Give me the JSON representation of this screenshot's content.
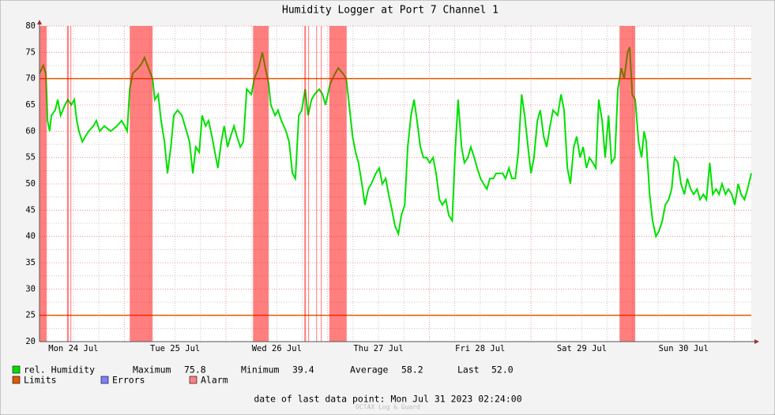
{
  "chart_data": {
    "type": "line",
    "title": "Humidity Logger at Port 7 Channel 1",
    "xlim": [
      4,
      172
    ],
    "xticks": [
      {
        "value": 12,
        "label": "Mon 24 Jul"
      },
      {
        "value": 36,
        "label": "Tue 25 Jul"
      },
      {
        "value": 60,
        "label": "Wed 26 Jul"
      },
      {
        "value": 84,
        "label": "Thu 27 Jul"
      },
      {
        "value": 108,
        "label": "Fri 28 Jul"
      },
      {
        "value": 132,
        "label": "Sat 29 Jul"
      },
      {
        "value": 156,
        "label": "Sun 30 Jul"
      }
    ],
    "x_major_grid": [
      24,
      48,
      72,
      96,
      120,
      144,
      168
    ],
    "x_minor_grid": [
      6,
      12,
      18,
      30,
      36,
      42,
      54,
      60,
      66,
      78,
      84,
      90,
      102,
      108,
      114,
      126,
      132,
      138,
      150,
      156,
      162
    ],
    "ylim": [
      20,
      80
    ],
    "yticks": [
      20,
      25,
      30,
      35,
      40,
      45,
      50,
      55,
      60,
      65,
      70,
      75,
      80
    ],
    "y_minor_grid": [
      22.5,
      27.5,
      32.5,
      37.5,
      42.5,
      47.5,
      52.5,
      57.5,
      62.5,
      67.5,
      72.5,
      77.5
    ],
    "grid": true,
    "series": [
      {
        "name": "rel. Humidity",
        "color": "#00e000",
        "x": [
          4.0,
          4.9,
          5.5,
          5.9,
          6.4,
          6.8,
          7.7,
          8.3,
          9.0,
          10.0,
          10.7,
          11.5,
          12.2,
          12.8,
          13.3,
          14.1,
          14.8,
          15.6,
          16.7,
          17.4,
          18.2,
          19.3,
          20.8,
          22.3,
          23.4,
          24.1,
          24.7,
          25.3,
          26.0,
          27.3,
          28.2,
          28.8,
          29.7,
          30.7,
          31.2,
          32.0,
          32.7,
          33.5,
          34.2,
          35.0,
          35.7,
          36.6,
          37.6,
          38.7,
          39.4,
          40.2,
          40.9,
          41.7,
          42.4,
          43.2,
          43.9,
          44.7,
          45.4,
          46.1,
          46.9,
          47.6,
          48.4,
          49.1,
          49.9,
          50.6,
          51.4,
          52.1,
          52.9,
          54.0,
          54.7,
          55.7,
          56.6,
          57.3,
          58.1,
          58.6,
          59.6,
          60.3,
          61.1,
          62.2,
          62.9,
          63.7,
          64.4,
          65.2,
          65.9,
          66.7,
          67.4,
          68.2,
          68.9,
          70.0,
          70.8,
          71.5,
          72.6,
          73.8,
          74.5,
          75.6,
          76.4,
          77.1,
          77.9,
          78.6,
          79.3,
          80.1,
          80.8,
          81.6,
          82.3,
          83.4,
          84.2,
          84.9,
          85.7,
          86.4,
          87.2,
          87.9,
          88.7,
          89.4,
          90.2,
          90.9,
          91.7,
          92.4,
          93.1,
          93.9,
          94.6,
          95.4,
          96.1,
          96.9,
          97.6,
          98.4,
          99.1,
          99.9,
          100.6,
          101.4,
          102.1,
          102.8,
          103.6,
          104.3,
          105.1,
          105.8,
          106.6,
          107.3,
          108.1,
          108.8,
          109.6,
          110.3,
          111.1,
          111.8,
          113.3,
          114.0,
          114.8,
          115.5,
          116.3,
          117.0,
          117.8,
          118.5,
          119.3,
          120.0,
          120.7,
          121.5,
          122.2,
          123.0,
          123.7,
          124.5,
          125.2,
          126.3,
          127.1,
          127.8,
          128.6,
          129.3,
          130.1,
          130.8,
          131.6,
          132.3,
          133.1,
          133.8,
          134.6,
          135.3,
          136.0,
          136.8,
          137.5,
          138.3,
          139.0,
          139.8,
          140.5,
          141.3,
          142.0,
          142.8,
          143.3,
          143.9,
          144.6,
          145.4,
          146.1,
          146.7,
          147.2,
          148.0,
          148.7,
          149.5,
          150.2,
          151.0,
          151.7,
          152.5,
          153.2,
          153.9,
          154.7,
          155.4,
          156.2,
          156.9,
          157.7,
          158.4,
          159.2,
          159.9,
          160.7,
          161.4,
          162.2,
          162.9,
          163.7,
          164.4,
          165.1,
          165.9,
          166.6,
          167.4,
          168.1,
          168.9,
          169.6,
          170.4,
          171.1,
          172.0
        ],
        "values": [
          71,
          72.5,
          71,
          62,
          60,
          63,
          64,
          66,
          63,
          65,
          66,
          65,
          66,
          62,
          60,
          58,
          59,
          60,
          61,
          62,
          60,
          61,
          60,
          61,
          62,
          61,
          60,
          68,
          71,
          72,
          73,
          74,
          72,
          70,
          66,
          67,
          62,
          58,
          52,
          57,
          63,
          64,
          63,
          60,
          58,
          52,
          57,
          56,
          63,
          61,
          62,
          59,
          56,
          53,
          58,
          61,
          57,
          59,
          61,
          59,
          57,
          58,
          68,
          67,
          70,
          72,
          75,
          72,
          69,
          65,
          63,
          64,
          62,
          60,
          58,
          52,
          51,
          63,
          64,
          68,
          63,
          66,
          67,
          68,
          67,
          65,
          69,
          71,
          72,
          71,
          70,
          65,
          59,
          56,
          54,
          50,
          46,
          49,
          50,
          52,
          53,
          50,
          51,
          48,
          45,
          42,
          40.5,
          44,
          46,
          57,
          63,
          66,
          62,
          57,
          55,
          55,
          54,
          55,
          52,
          47,
          46,
          47,
          44,
          43,
          56,
          66,
          57,
          54,
          55,
          57,
          55,
          53,
          51,
          50,
          49,
          51,
          51,
          52,
          52,
          51,
          53,
          51,
          51,
          56,
          67,
          63,
          57,
          52,
          55,
          62,
          64,
          59,
          57,
          61,
          64,
          63,
          67,
          64,
          53,
          50,
          57,
          59,
          55,
          57,
          53,
          55,
          54,
          53,
          66,
          62,
          55,
          63,
          54,
          55,
          68,
          72,
          70,
          75,
          76,
          67,
          66,
          58,
          55,
          60,
          58,
          48,
          43,
          40,
          41,
          43,
          46,
          47,
          49,
          55,
          54,
          50,
          48,
          51,
          49,
          48,
          49,
          47,
          48,
          47,
          54,
          48,
          49,
          48,
          50,
          48,
          49,
          48,
          46,
          50,
          48,
          47,
          49,
          52
        ]
      },
      {
        "name": "Limits",
        "color": "#e05a00",
        "values": [
          70,
          25
        ]
      },
      {
        "name": "Errors",
        "color": "#7f7fff"
      },
      {
        "name": "Alarm",
        "color": "#ff7f7f",
        "spans": [
          [
            4.0,
            5.7
          ],
          [
            10.5,
            10.9
          ],
          [
            11.3,
            11.5
          ],
          [
            25.3,
            30.7
          ],
          [
            54.4,
            58.1
          ],
          [
            66.5,
            66.9
          ],
          [
            67.4,
            67.6
          ],
          [
            69.3,
            69.5
          ],
          [
            70.4,
            70.6
          ],
          [
            72.4,
            76.5
          ],
          [
            140.9,
            144.6
          ]
        ]
      }
    ],
    "stats": [
      {
        "name": "Maximum",
        "value": 75.8
      },
      {
        "name": "Minimum",
        "value": 39.4
      },
      {
        "name": "Average",
        "value": 58.2
      },
      {
        "name": "Last",
        "value": 52,
        "label": "52.0"
      }
    ],
    "footer": "date of last data point:  Mon Jul 31 2023 02:24:00",
    "watermark": "OCTAX Log & Guard"
  }
}
